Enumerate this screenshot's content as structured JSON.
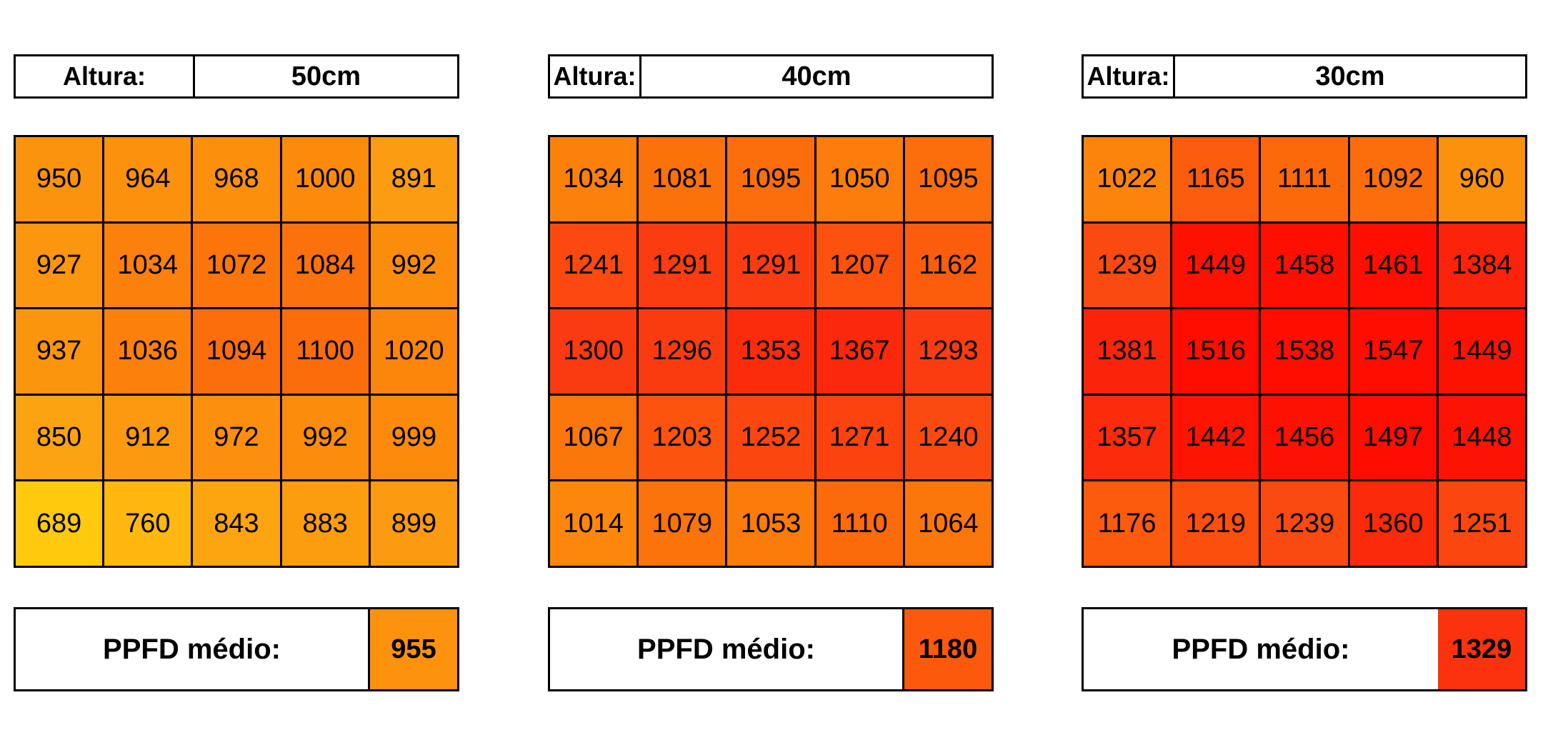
{
  "colors": {
    "background": "#FFFFFF",
    "border": "#000000",
    "text": "#000000"
  },
  "color_scale": {
    "description": "heatmap fill: yellow (low PPFD) through orange to red (high PPFD)",
    "stops": [
      {
        "value": 689,
        "color": "#FFC90D"
      },
      {
        "value": 860,
        "color": "#FCA111"
      },
      {
        "value": 1000,
        "color": "#FC8B0C"
      },
      {
        "value": 1100,
        "color": "#FB6C0B"
      },
      {
        "value": 1200,
        "color": "#FC540E"
      },
      {
        "value": 1300,
        "color": "#FA3A10"
      },
      {
        "value": 1400,
        "color": "#FB1F08"
      },
      {
        "value": 1470,
        "color": "#FE0D00"
      },
      {
        "value": 1550,
        "color": "#FE0D00"
      }
    ]
  },
  "chart_data": [
    {
      "type": "heatmap",
      "rows": 5,
      "cols": 5,
      "header": {
        "label": "Altura:",
        "value": "50cm"
      },
      "values": [
        [
          950,
          964,
          968,
          1000,
          891
        ],
        [
          927,
          1034,
          1072,
          1084,
          992
        ],
        [
          937,
          1036,
          1094,
          1100,
          1020
        ],
        [
          850,
          912,
          972,
          992,
          999
        ],
        [
          689,
          760,
          843,
          883,
          899
        ]
      ],
      "footer": {
        "label": "PPFD médio:",
        "value": 955
      },
      "value_range": [
        689,
        1100
      ],
      "legend": "none"
    },
    {
      "type": "heatmap",
      "rows": 5,
      "cols": 5,
      "header": {
        "label": "Altura:",
        "value": "40cm"
      },
      "values": [
        [
          1034,
          1081,
          1095,
          1050,
          1095
        ],
        [
          1241,
          1291,
          1291,
          1207,
          1162
        ],
        [
          1300,
          1296,
          1353,
          1367,
          1293
        ],
        [
          1067,
          1203,
          1252,
          1271,
          1240
        ],
        [
          1014,
          1079,
          1053,
          1110,
          1064
        ]
      ],
      "footer": {
        "label": "PPFD médio:",
        "value": 1180
      },
      "value_range": [
        1014,
        1367
      ],
      "legend": "none"
    },
    {
      "type": "heatmap",
      "rows": 5,
      "cols": 5,
      "header": {
        "label": "Altura:",
        "value": "30cm"
      },
      "values": [
        [
          1022,
          1165,
          1111,
          1092,
          960
        ],
        [
          1239,
          1449,
          1458,
          1461,
          1384
        ],
        [
          1381,
          1516,
          1538,
          1547,
          1449
        ],
        [
          1357,
          1442,
          1456,
          1497,
          1448
        ],
        [
          1176,
          1219,
          1239,
          1360,
          1251
        ]
      ],
      "footer": {
        "label": "PPFD médio:",
        "value": 1329
      },
      "value_range": [
        960,
        1547
      ],
      "legend": "none"
    }
  ]
}
